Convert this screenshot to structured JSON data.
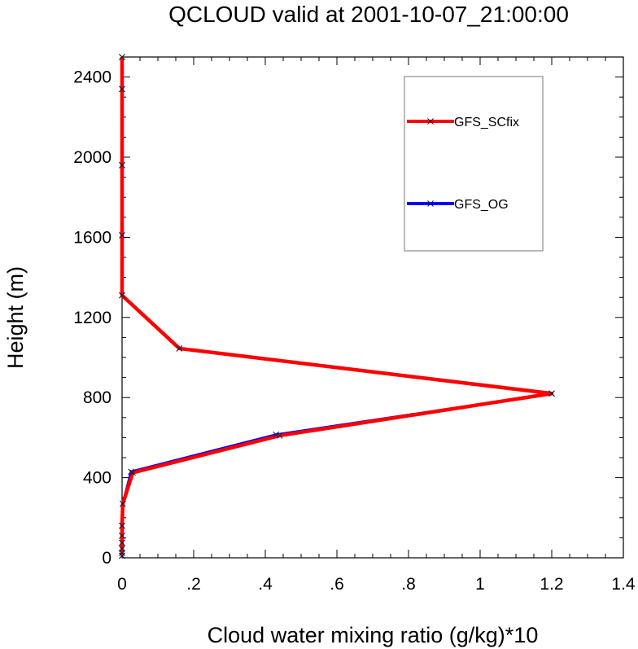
{
  "chart_data": {
    "type": "line",
    "title": "QCLOUD valid at 2001-10-07_21:00:00",
    "xlabel": "Cloud water mixing ratio (g/kg)*10",
    "ylabel": "Height (m)",
    "xlim": [
      0,
      1.4
    ],
    "ylim": [
      0,
      2500
    ],
    "xticks": [
      0,
      0.2,
      0.4,
      0.6,
      0.8,
      1,
      1.2,
      1.4
    ],
    "xtick_labels": [
      "0",
      ".2",
      ".4",
      ".6",
      ".8",
      "1",
      "1.2",
      "1.4"
    ],
    "yticks": [
      0,
      400,
      800,
      1200,
      1600,
      2000,
      2400
    ],
    "ytick_labels": [
      "0",
      "400",
      "800",
      "1200",
      "1600",
      "2000",
      "2400"
    ],
    "grid": false,
    "legend_position": "top-right",
    "marker": "x",
    "series": [
      {
        "name": "GFS_SCfix",
        "color": "#ff0000",
        "x": [
          0,
          0,
          0,
          0,
          0,
          0,
          0.002,
          0.03,
          0.44,
          1.2,
          0.16,
          0,
          0,
          0,
          0,
          0
        ],
        "y": [
          10,
          25,
          45,
          75,
          110,
          160,
          270,
          425,
          610,
          820,
          1045,
          1310,
          1610,
          1960,
          2340,
          2500
        ]
      },
      {
        "name": "GFS_OG",
        "color": "#0000ff",
        "x": [
          0,
          0,
          0,
          0,
          0,
          0,
          0.002,
          0.025,
          0.43,
          1.2,
          0.16,
          0,
          0,
          0,
          0,
          0
        ],
        "y": [
          10,
          25,
          45,
          75,
          110,
          160,
          270,
          430,
          615,
          820,
          1045,
          1310,
          1610,
          1960,
          2340,
          2500
        ]
      }
    ]
  }
}
